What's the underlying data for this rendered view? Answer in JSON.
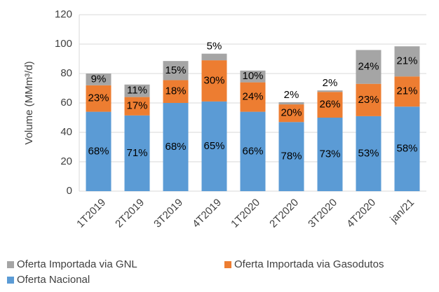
{
  "chart_data": {
    "type": "bar",
    "stacked": true,
    "y_label": "Volume (MMm³/d)",
    "categories": [
      "1T2019",
      "2T2019",
      "3T2019",
      "4T2019",
      "1T2020",
      "2T2020",
      "3T2020",
      "4T2020",
      "jan/21"
    ],
    "series": [
      {
        "name": "Oferta Importada via GNL",
        "color": "#a5a5a5",
        "values": [
          8,
          8.5,
          13,
          4.5,
          8,
          1.5,
          1,
          23,
          20.5
        ],
        "share_labels": [
          "9%",
          "11%",
          "15%",
          "5%",
          "10%",
          "2%",
          "2%",
          "24%",
          "21%"
        ]
      },
      {
        "name": "Oferta Importada via Gasodutos",
        "color": "#ed7d31",
        "values": [
          18,
          12.5,
          15.5,
          28,
          20,
          12,
          17.5,
          22,
          20.5
        ],
        "share_labels": [
          "23%",
          "17%",
          "18%",
          "30%",
          "24%",
          "20%",
          "26%",
          "23%",
          "21%"
        ]
      },
      {
        "name": "Oferta Nacional",
        "color": "#5b9bd5",
        "values": [
          54,
          51.5,
          60,
          61,
          54,
          47,
          50,
          51,
          57.5
        ],
        "share_labels": [
          "68%",
          "71%",
          "68%",
          "65%",
          "66%",
          "78%",
          "73%",
          "53%",
          "58%"
        ]
      }
    ],
    "ylim": [
      0,
      120
    ],
    "yticks": [
      0,
      20,
      40,
      60,
      80,
      100,
      120
    ],
    "grid": true
  }
}
